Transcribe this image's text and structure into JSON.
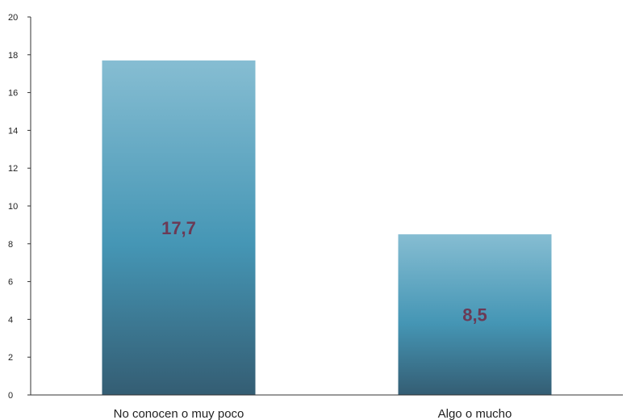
{
  "chart_data": {
    "type": "bar",
    "title": "",
    "xlabel": "",
    "ylabel": "",
    "categories": [
      "No conocen o muy poco",
      "Algo o mucho"
    ],
    "values": [
      17.7,
      8.5
    ],
    "data_labels": [
      "17,7",
      "8,5"
    ],
    "ylim": [
      0,
      20
    ],
    "yticks": [
      0,
      2,
      4,
      6,
      8,
      10,
      12,
      14,
      16,
      18,
      20
    ],
    "ytick_labels": [
      "0",
      "2",
      "4",
      "6",
      "8",
      "10",
      "12",
      "14",
      "16",
      "18",
      "20"
    ],
    "grid": false,
    "legend": "none"
  },
  "colors": {
    "bar_top": "#86BDD2",
    "bar_middle": "#4596B5",
    "bar_bottom": "#345D73",
    "data_label": "#6B3A55",
    "axis": "#333333"
  }
}
